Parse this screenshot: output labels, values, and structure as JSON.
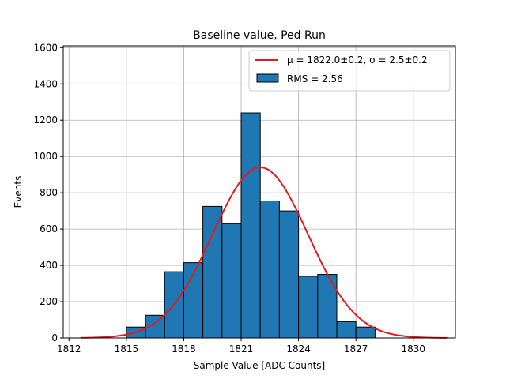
{
  "chart_data": {
    "type": "bar",
    "title": "Baseline value, Ped Run",
    "xlabel": "Sample Value [ADC Counts]",
    "ylabel": "Events",
    "xlim": [
      1811.7,
      1832.2
    ],
    "ylim": [
      0,
      1610
    ],
    "xticks": [
      1812,
      1815,
      1818,
      1821,
      1824,
      1827,
      1830
    ],
    "yticks": [
      0,
      200,
      400,
      600,
      800,
      1000,
      1200,
      1400,
      1600
    ],
    "grid": true,
    "legend_position": "top-right",
    "histogram": {
      "name": "RMS = 2.56",
      "color": "#1f77b4",
      "edge_color": "#000000",
      "bins": [
        {
          "x0": 1815.0,
          "x1": 1816.0,
          "value": 60
        },
        {
          "x0": 1816.0,
          "x1": 1817.0,
          "value": 125
        },
        {
          "x0": 1817.0,
          "x1": 1818.0,
          "value": 365
        },
        {
          "x0": 1818.0,
          "x1": 1819.0,
          "value": 415
        },
        {
          "x0": 1819.0,
          "x1": 1820.0,
          "value": 725
        },
        {
          "x0": 1820.0,
          "x1": 1821.0,
          "value": 630
        },
        {
          "x0": 1821.0,
          "x1": 1822.0,
          "value": 1240
        },
        {
          "x0": 1822.0,
          "x1": 1823.0,
          "value": 755
        },
        {
          "x0": 1823.0,
          "x1": 1824.0,
          "value": 700
        },
        {
          "x0": 1824.0,
          "x1": 1825.0,
          "value": 340
        },
        {
          "x0": 1825.0,
          "x1": 1826.0,
          "value": 350
        },
        {
          "x0": 1826.0,
          "x1": 1827.0,
          "value": 90
        },
        {
          "x0": 1827.0,
          "x1": 1828.0,
          "value": 60
        }
      ]
    },
    "fit": {
      "name": "μ = 1822.0±0.2, σ = 2.5±0.2",
      "type": "gaussian",
      "color": "#e31a1c",
      "mu": 1822.0,
      "sigma": 2.5,
      "amplitude": 940,
      "x_range": [
        1812.6,
        1831.8
      ]
    }
  }
}
